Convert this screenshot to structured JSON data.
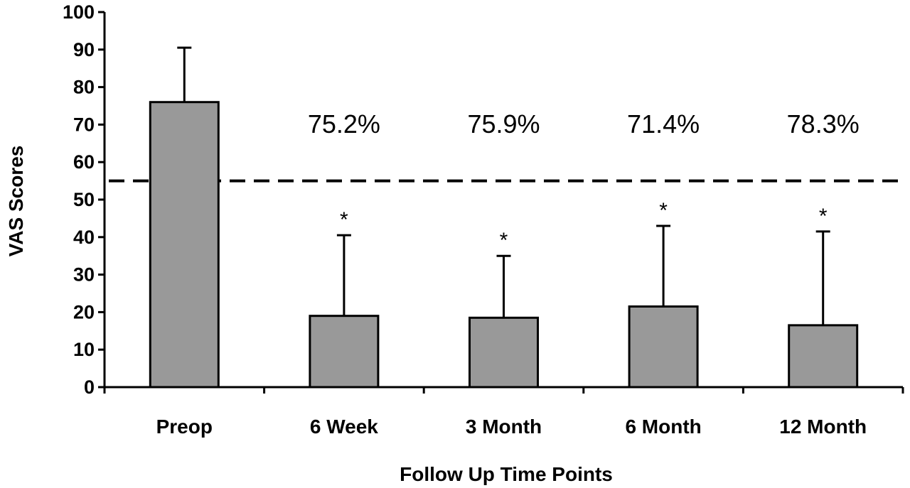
{
  "chart_data": {
    "type": "bar",
    "categories": [
      "Preop",
      "6 Week",
      "3 Month",
      "6 Month",
      "12 Month"
    ],
    "values": [
      76,
      19,
      18.5,
      21.5,
      16.5
    ],
    "error_upper": [
      90.5,
      40.5,
      35,
      43,
      41.5
    ],
    "annotations": [
      "",
      "75.2%",
      "75.9%",
      "71.4%",
      "78.3%"
    ],
    "significance": [
      "",
      "*",
      "*",
      "*",
      "*"
    ],
    "reference_line": 55,
    "title": "",
    "xlabel": "Follow Up Time Points",
    "ylabel": "VAS Scores",
    "ylim": [
      0,
      100
    ],
    "yticks": [
      0,
      10,
      20,
      30,
      40,
      50,
      60,
      70,
      80,
      90,
      100
    ],
    "grid": false,
    "bar_color": "#999999"
  }
}
